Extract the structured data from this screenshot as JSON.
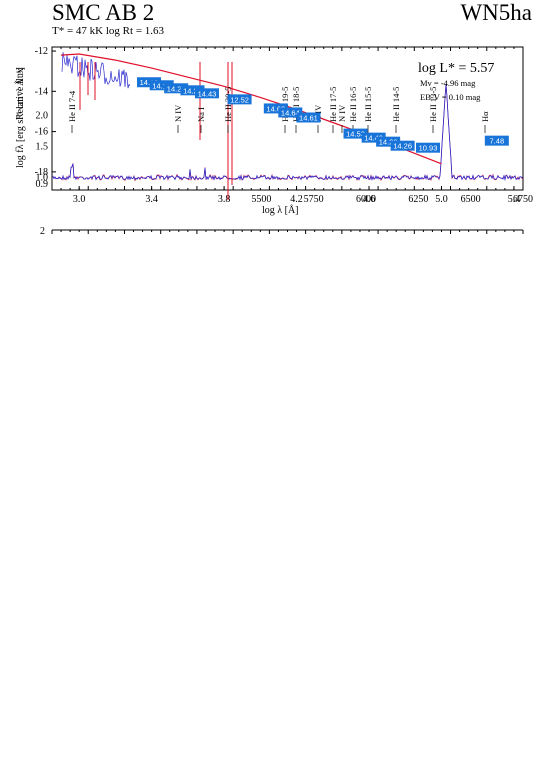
{
  "header": {
    "star": "SMC AB 2",
    "spectral_class": "WN5ha",
    "params": "T* = 47 kK log Rt = 1.63"
  },
  "annotations": {
    "log_l": "log L* = 5.57",
    "mv": "Mv = -4.96 mag",
    "ebv": "EB-V = 0.10 mag"
  },
  "colors": {
    "model": "#e0102a",
    "observed": "#2a2ad0",
    "photometry": "#1874d8"
  },
  "chart_data": [
    {
      "type": "line",
      "description_panel": "SED",
      "xlabel": "log λ [Å]",
      "ylabel": "log fλ [erg s⁻¹ cm⁻² Å⁻¹]",
      "xlim": [
        2.85,
        5.45
      ],
      "ylim": [
        -18.9,
        -11.8
      ],
      "xticks": [
        "3.0",
        "3.4",
        "3.8",
        "4.2",
        "4.6",
        "5.0",
        "5.4"
      ],
      "yticks": [
        "-12",
        "-14",
        "-16",
        "-18"
      ],
      "series": [
        {
          "label": "model",
          "x": [
            2.9,
            3.0,
            3.2,
            3.4,
            3.6,
            3.8,
            4.0,
            4.2,
            4.4,
            4.6,
            4.8,
            5.0
          ],
          "y": [
            -12.2,
            -12.15,
            -12.45,
            -12.85,
            -13.3,
            -13.75,
            -14.3,
            -14.9,
            -15.55,
            -16.2,
            -16.9,
            -17.6
          ]
        }
      ],
      "photometry": [
        {
          "x": 3.38,
          "y": -13.55,
          "label": "14.19"
        },
        {
          "x": 3.45,
          "y": -13.7,
          "label": "14.14"
        },
        {
          "x": 3.53,
          "y": -13.85,
          "label": "14.27"
        },
        {
          "x": 3.62,
          "y": -13.95,
          "label": "14.26"
        },
        {
          "x": 3.7,
          "y": -14.1,
          "label": "14.43"
        },
        {
          "x": 3.88,
          "y": -14.4,
          "label": "12.52"
        },
        {
          "x": 4.08,
          "y": -14.85,
          "label": "14.62"
        },
        {
          "x": 4.16,
          "y": -15.05,
          "label": "14.64"
        },
        {
          "x": 4.26,
          "y": -15.3,
          "label": "14.61"
        },
        {
          "x": 4.52,
          "y": -16.1,
          "label": "14.53"
        },
        {
          "x": 4.62,
          "y": -16.3,
          "label": "14.49"
        },
        {
          "x": 4.7,
          "y": -16.5,
          "label": "14.26"
        },
        {
          "x": 4.78,
          "y": -16.7,
          "label": "14.26"
        },
        {
          "x": 4.92,
          "y": -16.8,
          "label": "10.93"
        },
        {
          "x": 5.3,
          "y": -16.45,
          "label": "7.48"
        }
      ]
    },
    {
      "type": "line",
      "description_panel": "normalized spectrum",
      "ylabel": "Relative flux",
      "xlim": [
        4500,
        6750
      ],
      "ylim": [
        0.8,
        3.1
      ],
      "xticks": [
        "5500",
        "5750",
        "6000",
        "6250",
        "6500",
        "6750"
      ],
      "yticks": [
        "0.9",
        "1.0",
        "1.5",
        "2.0"
      ],
      "line_ids": [
        "He II 7-4",
        "N IV",
        "Na I",
        "He II 20-5",
        "He II 19-5",
        "He II 18-5",
        "N IV",
        "He II 17-5",
        "N IV",
        "He II 16-5",
        "He II 15-5",
        "He II 14-5",
        "He II 13-5",
        "Hα"
      ]
    }
  ]
}
